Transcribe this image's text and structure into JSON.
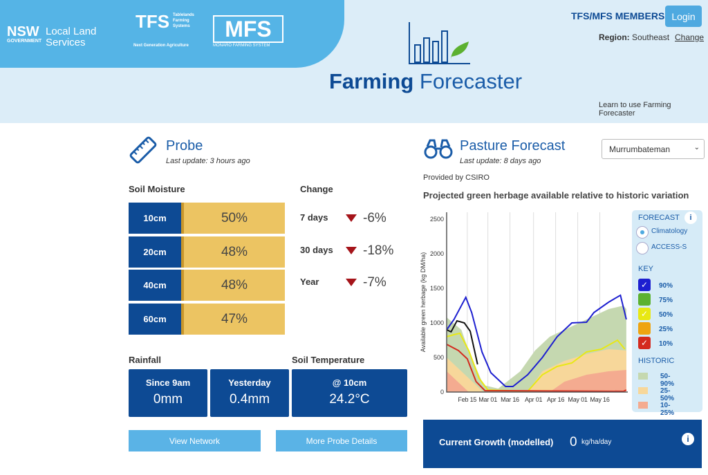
{
  "header": {
    "logos": [
      "NSW GOVERNMENT",
      "Local Land Services",
      "TFS",
      "Tablelands Farming Systems",
      "Next Generation Agriculture",
      "MFS",
      "MONARO FARMING SYSTEM"
    ],
    "title_bold": "Farming",
    "title_rest": " Forecaster",
    "members": "TFS/MFS MEMBERS",
    "login": "Login",
    "region_label": "Region:",
    "region": "Southeast",
    "change": "Change",
    "learn": "Learn to use Farming Forecaster"
  },
  "probe": {
    "title": "Probe",
    "last_update": "Last update: 3 hours ago",
    "soil_moisture": "Soil Moisture",
    "change": "Change",
    "depths": [
      {
        "depth": "10cm",
        "value": "50%",
        "pct": 50
      },
      {
        "depth": "20cm",
        "value": "48%",
        "pct": 48
      },
      {
        "depth": "40cm",
        "value": "48%",
        "pct": 48
      },
      {
        "depth": "60cm",
        "value": "47%",
        "pct": 47
      }
    ],
    "changes": [
      {
        "period": "7 days",
        "value": "-6%"
      },
      {
        "period": "30 days",
        "value": "-18%"
      },
      {
        "period": "Year",
        "value": "-7%"
      }
    ],
    "rainfall": "Rainfall",
    "soil_temp": "Soil Temperature",
    "since9": "Since 9am",
    "since9_val": "0mm",
    "yesterday": "Yesterday",
    "yesterday_val": "0.4mm",
    "at10": "@ 10cm",
    "at10_val": "24.2°C",
    "view_network": "View Network",
    "more_details": "More Probe Details"
  },
  "pasture": {
    "title": "Pasture Forecast",
    "last_update": "Last update: 8 days ago",
    "location": "Murrumbateman",
    "provided": "Provided by CSIRO",
    "chart_title": "Projected green herbage available relative to historic variation",
    "forecast": "FORECAST",
    "info": "i",
    "climatology": "Climatology",
    "access": "ACCESS-S",
    "key": "KEY",
    "historic": "HISTORIC",
    "current_growth": "Current Growth (modelled)",
    "growth_value": "0",
    "growth_unit": "kg/ha/day"
  },
  "chart_data": {
    "type": "line",
    "ylabel": "Available green herbage (kg DM/ha)",
    "ylim": [
      0,
      2600
    ],
    "yticks": [
      "0",
      "500",
      "1000",
      "1500",
      "2000",
      "2500"
    ],
    "x_unit": "days since Feb 01",
    "xlim": [
      0,
      123
    ],
    "xticks": [
      {
        "label": "Feb 15",
        "x": 14
      },
      {
        "label": "Mar 01",
        "x": 28
      },
      {
        "label": "Mar 16",
        "x": 43
      },
      {
        "label": "Apr 01",
        "x": 59
      },
      {
        "label": "Apr 16",
        "x": 74
      },
      {
        "label": "May 01",
        "x": 89
      },
      {
        "label": "May 16",
        "x": 104
      }
    ],
    "bands": [
      {
        "name": "50-90%",
        "color": "#c5d8b0",
        "upper": [
          [
            0,
            1080
          ],
          [
            10,
            900
          ],
          [
            15,
            600
          ],
          [
            25,
            100
          ],
          [
            35,
            50
          ],
          [
            50,
            300
          ],
          [
            60,
            600
          ],
          [
            70,
            800
          ],
          [
            80,
            900
          ],
          [
            90,
            1000
          ],
          [
            100,
            1100
          ],
          [
            110,
            1200
          ],
          [
            120,
            1250
          ],
          [
            122,
            1200
          ]
        ],
        "lower": [
          [
            0,
            0
          ],
          [
            122,
            0
          ]
        ]
      },
      {
        "name": "25-50%",
        "color": "#f7d79a",
        "upper": [
          [
            0,
            500
          ],
          [
            10,
            300
          ],
          [
            20,
            100
          ],
          [
            25,
            0
          ],
          [
            55,
            0
          ],
          [
            65,
            300
          ],
          [
            80,
            450
          ],
          [
            95,
            550
          ],
          [
            110,
            620
          ],
          [
            122,
            600
          ]
        ],
        "lower": [
          [
            0,
            0
          ],
          [
            122,
            0
          ]
        ]
      },
      {
        "name": "10-25%",
        "color": "#f4ab90",
        "upper": [
          [
            0,
            300
          ],
          [
            10,
            100
          ],
          [
            15,
            0
          ],
          [
            70,
            0
          ],
          [
            80,
            150
          ],
          [
            95,
            250
          ],
          [
            110,
            300
          ],
          [
            122,
            320
          ]
        ],
        "lower": [
          [
            0,
            0
          ],
          [
            122,
            0
          ]
        ]
      }
    ],
    "series": [
      {
        "name": "90%",
        "color": "#1d1fd0",
        "points": [
          [
            0,
            900
          ],
          [
            5,
            1050
          ],
          [
            13,
            1370
          ],
          [
            17,
            1150
          ],
          [
            24,
            580
          ],
          [
            30,
            280
          ],
          [
            40,
            80
          ],
          [
            45,
            80
          ],
          [
            55,
            250
          ],
          [
            65,
            500
          ],
          [
            75,
            800
          ],
          [
            85,
            1000
          ],
          [
            95,
            1010
          ],
          [
            100,
            1150
          ],
          [
            110,
            1300
          ],
          [
            118,
            1400
          ],
          [
            122,
            1050
          ]
        ]
      },
      {
        "name": "75%",
        "color": "#5cb130",
        "points": []
      },
      {
        "name": "50%",
        "color": "#e8e814",
        "points": [
          [
            0,
            800
          ],
          [
            5,
            830
          ],
          [
            9,
            850
          ],
          [
            15,
            600
          ],
          [
            22,
            200
          ],
          [
            28,
            30
          ],
          [
            55,
            10
          ],
          [
            65,
            250
          ],
          [
            75,
            370
          ],
          [
            85,
            420
          ],
          [
            95,
            580
          ],
          [
            105,
            620
          ],
          [
            116,
            750
          ],
          [
            121,
            620
          ]
        ]
      },
      {
        "name": "25%",
        "color": "#eea412",
        "points": []
      },
      {
        "name": "10%",
        "color": "#d42a1e",
        "points": [
          [
            0,
            690
          ],
          [
            8,
            600
          ],
          [
            14,
            480
          ],
          [
            20,
            150
          ],
          [
            26,
            20
          ],
          [
            120,
            10
          ],
          [
            122,
            30
          ]
        ]
      },
      {
        "name": "observed",
        "color": "#111111",
        "points": [
          [
            0,
            900
          ],
          [
            3,
            870
          ],
          [
            7,
            1030
          ],
          [
            12,
            1000
          ],
          [
            16,
            880
          ],
          [
            21,
            400
          ]
        ]
      }
    ]
  }
}
